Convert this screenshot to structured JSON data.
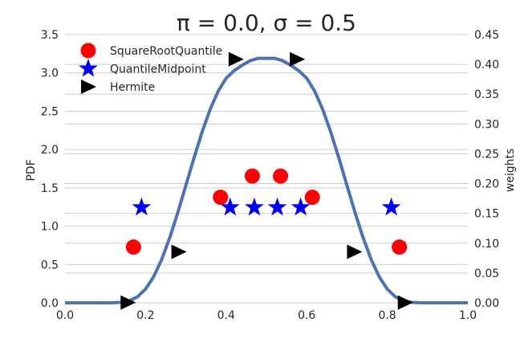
{
  "chart_data": {
    "type": "line",
    "title": "π = 0.0, σ = 0.5",
    "xlabel": "",
    "ylabel": "PDF",
    "ylabel_right": "weights",
    "xlim": [
      0.0,
      1.0
    ],
    "ylim": [
      0.0,
      3.5
    ],
    "ylim_right": [
      0.0,
      0.45
    ],
    "x_ticks": [
      "0.0",
      "0.2",
      "0.4",
      "0.6",
      "0.8",
      "1.0"
    ],
    "y_ticks": [
      "0.0",
      "0.5",
      "1.0",
      "1.5",
      "2.0",
      "2.5",
      "3.0",
      "3.5"
    ],
    "y_ticks_right": [
      "0.00",
      "0.05",
      "0.10",
      "0.15",
      "0.20",
      "0.25",
      "0.30",
      "0.35",
      "0.40",
      "0.45"
    ],
    "grid": true,
    "legend_position": "top-left",
    "pdf_curve": {
      "color": "#4C72B0",
      "x": [
        0.0,
        0.05,
        0.1,
        0.12,
        0.14,
        0.16,
        0.18,
        0.2,
        0.22,
        0.24,
        0.26,
        0.28,
        0.3,
        0.32,
        0.34,
        0.36,
        0.38,
        0.4,
        0.42,
        0.44,
        0.46,
        0.48,
        0.5,
        0.52,
        0.54,
        0.56,
        0.58,
        0.6,
        0.62,
        0.64,
        0.66,
        0.68,
        0.7,
        0.72,
        0.74,
        0.76,
        0.78,
        0.8,
        0.82,
        0.84,
        0.86,
        0.88,
        0.9,
        0.95,
        1.0
      ],
      "y": [
        0.0,
        0.0,
        0.0,
        0.001,
        0.006,
        0.027,
        0.079,
        0.179,
        0.34,
        0.565,
        0.849,
        1.177,
        1.53,
        1.886,
        2.223,
        2.52,
        2.76,
        2.93,
        3.03,
        3.1,
        3.16,
        3.19,
        3.19,
        3.19,
        3.16,
        3.1,
        3.03,
        2.93,
        2.76,
        2.52,
        2.223,
        1.886,
        1.53,
        1.177,
        0.849,
        0.565,
        0.34,
        0.179,
        0.079,
        0.027,
        0.006,
        0.001,
        0.0,
        0.0,
        0.0
      ]
    },
    "series": [
      {
        "name": "SquareRootQuantile",
        "marker": "circle",
        "color": "#ff0000",
        "x": [
          0.17,
          0.386,
          0.465,
          0.535,
          0.614,
          0.83
        ],
        "weights": [
          0.0935,
          0.177,
          0.2125,
          0.2125,
          0.177,
          0.0935
        ]
      },
      {
        "name": "QuantileMidpoint",
        "marker": "star",
        "color": "#0000ee",
        "x": [
          0.19,
          0.41,
          0.47,
          0.527,
          0.585,
          0.81
        ],
        "weights": [
          0.16,
          0.16,
          0.16,
          0.16,
          0.16,
          0.16
        ]
      },
      {
        "name": "Hermite",
        "marker": "triangle-right",
        "color": "#000000",
        "x": [
          0.156,
          0.282,
          0.424,
          0.576,
          0.718,
          0.844
        ],
        "weights": [
          0.0005,
          0.0855,
          0.4085,
          0.4085,
          0.0855,
          0.0005
        ]
      }
    ]
  }
}
